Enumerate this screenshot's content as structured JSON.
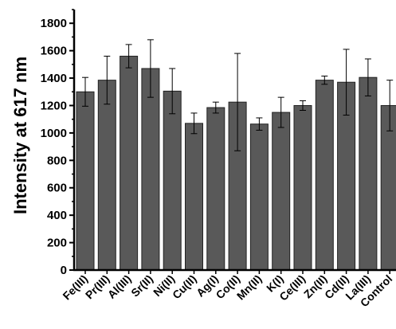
{
  "chart_data": {
    "type": "bar",
    "title": "",
    "xlabel": "",
    "ylabel": "Intensity at 617 nm",
    "ylim": [
      0,
      1900
    ],
    "yticks": [
      0,
      200,
      400,
      600,
      800,
      1000,
      1200,
      1400,
      1600,
      1800
    ],
    "grid": false,
    "categories": [
      "Fe(III)",
      "Pr(III)",
      "Al(III)",
      "Sr(II)",
      "Ni(II)",
      "Cu(II)",
      "Ag(I)",
      "Co(II)",
      "Mn(II)",
      "K(I)",
      "Ce(III)",
      "Zn(II)",
      "Cd(II)",
      "La(III)",
      "Control"
    ],
    "values": [
      1300,
      1385,
      1560,
      1470,
      1305,
      1070,
      1185,
      1225,
      1065,
      1150,
      1200,
      1385,
      1370,
      1405,
      1200
    ],
    "errors": [
      105,
      175,
      85,
      210,
      165,
      75,
      40,
      355,
      45,
      110,
      35,
      30,
      240,
      135,
      185
    ],
    "bar_color": "#595959"
  }
}
